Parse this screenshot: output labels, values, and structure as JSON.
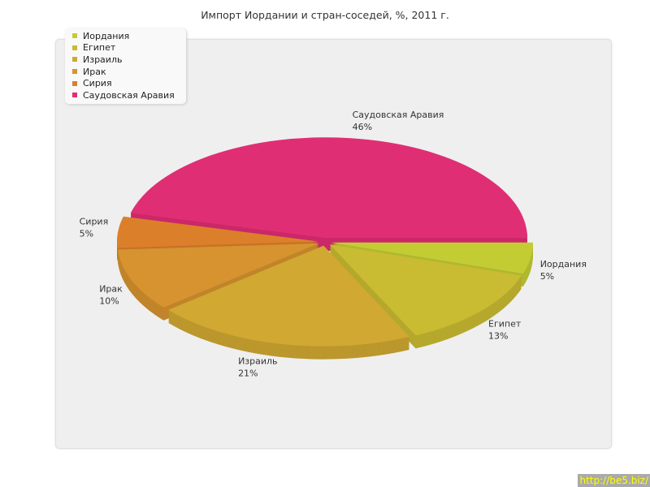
{
  "chart_data": {
    "type": "pie",
    "title": "Импорт Иордании и стран-соседей, %, 2011 г.",
    "categories": [
      "Иордания",
      "Египет",
      "Израиль",
      "Ирак",
      "Сирия",
      "Саудовская Аравия"
    ],
    "values": [
      5,
      13,
      21,
      10,
      5,
      46
    ],
    "labels": [
      "5%",
      "13%",
      "21%",
      "10%",
      "5%",
      "46%"
    ],
    "colors": [
      "#c4cc34",
      "#c9bb32",
      "#d0a832",
      "#d6932f",
      "#dc7f2b",
      "#e02e74"
    ],
    "style": "3d-exploded",
    "legend_position": "top-left"
  },
  "watermark": "http://be5.biz/"
}
